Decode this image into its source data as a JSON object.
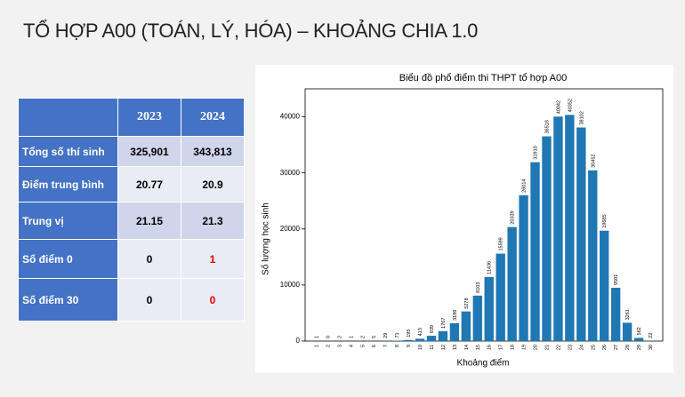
{
  "title": "TỔ HỢP A00 (TOÁN, LÝ, HÓA) – KHOẢNG CHIA 1.0",
  "table": {
    "header": [
      "2023",
      "2024"
    ],
    "rows": [
      [
        "Tổng số thí sinh",
        "325,901",
        "343,813"
      ],
      [
        "Điểm trung bình",
        "20.77",
        "20.9"
      ],
      [
        "Trung vị",
        "21.15",
        "21.3"
      ],
      [
        "Số điểm 0",
        "0",
        "1"
      ],
      [
        "Số điểm 30",
        "0",
        "0"
      ]
    ]
  },
  "chart_data": {
    "type": "bar",
    "title": "Biểu đồ phổ điểm thi THPT tổ hợp A00",
    "x_label": "Khoảng điểm",
    "y_label": "Số lượng học sinh",
    "categories": [
      "1",
      "2",
      "3",
      "4",
      "5",
      "6",
      "7",
      "8",
      "9",
      "10",
      "11",
      "12",
      "13",
      "14",
      "15",
      "16",
      "17",
      "18",
      "19",
      "20",
      "21",
      "22",
      "23",
      "24",
      "25",
      "26",
      "27",
      "28",
      "29",
      "30"
    ],
    "values": [
      1,
      0,
      2,
      1,
      2,
      5,
      29,
      71,
      195,
      413,
      939,
      1767,
      3189,
      5278,
      8103,
      11436,
      15599,
      20339,
      26014,
      31910,
      36518,
      40042,
      40352,
      38102,
      30452,
      19685,
      9501,
      3261,
      562,
      22
    ],
    "color": "#1f77b4",
    "ylim": [
      0,
      45000
    ],
    "yticks": [
      0,
      10000,
      20000,
      30000,
      40000
    ],
    "grid": false
  }
}
